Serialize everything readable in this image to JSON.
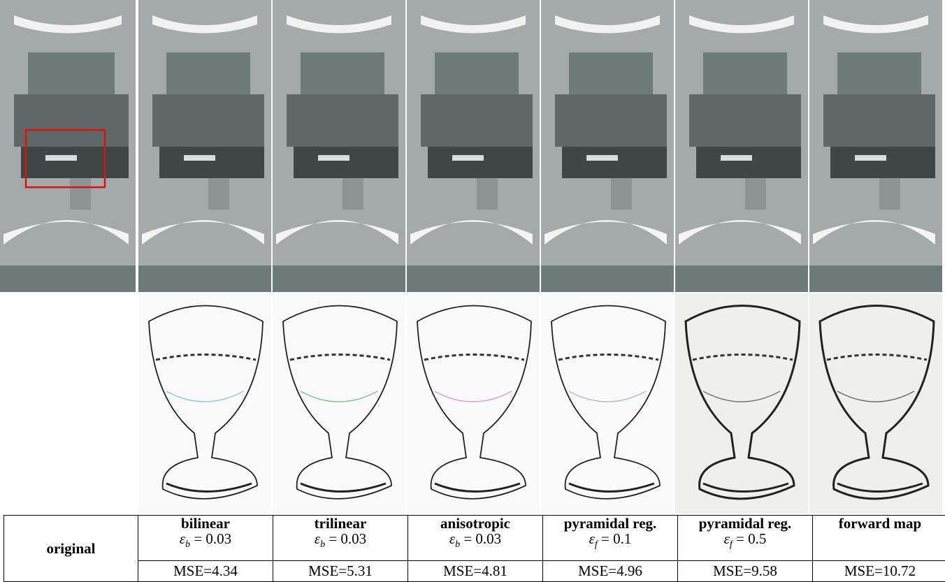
{
  "columns": [
    {
      "method": "original"
    },
    {
      "method": "bilinear",
      "epsilon": {
        "symbol": "ε",
        "sub": "b",
        "value": "= 0.03"
      },
      "mse": "MSE=4.34"
    },
    {
      "method": "trilinear",
      "epsilon": {
        "symbol": "ε",
        "sub": "b",
        "value": "= 0.03"
      },
      "mse": "MSE=5.31"
    },
    {
      "method": "anisotropic",
      "epsilon": {
        "symbol": "ε",
        "sub": "b",
        "value": "= 0.03"
      },
      "mse": "MSE=4.81"
    },
    {
      "method": "pyramidal reg.",
      "epsilon": {
        "symbol": "ε",
        "sub": "f",
        "value": "= 0.1"
      },
      "mse": "MSE=4.96"
    },
    {
      "method": "pyramidal reg.",
      "epsilon": {
        "symbol": "ε",
        "sub": "f",
        "value": "= 0.5"
      },
      "mse": "MSE=9.58"
    },
    {
      "method": "forward map",
      "mse": "MSE=10.72"
    }
  ]
}
